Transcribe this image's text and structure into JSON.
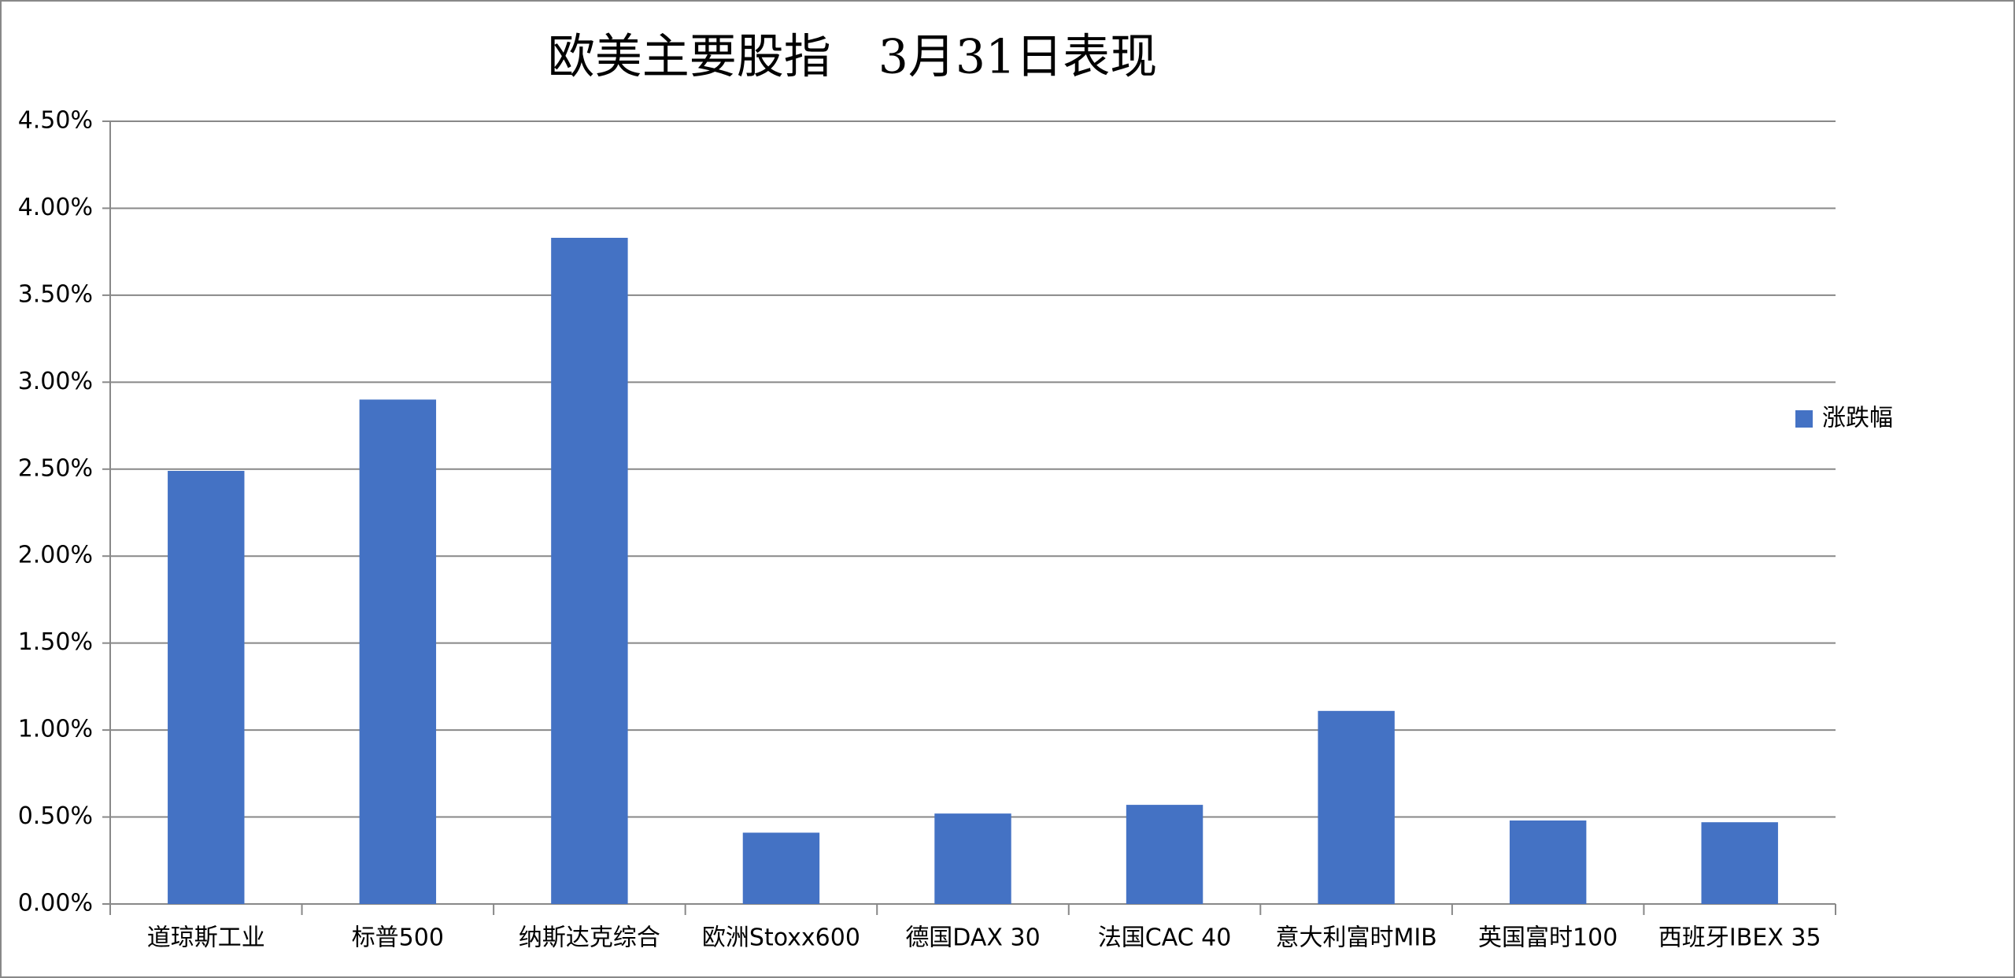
{
  "chart_data": {
    "type": "bar",
    "title": "欧美主要股指　3月31日表现",
    "categories": [
      "道琼斯工业",
      "标普500",
      "纳斯达克综合",
      "欧洲Stoxx600",
      "德国DAX 30",
      "法国CAC 40",
      "意大利富时MIB",
      "英国富时100",
      "西班牙IBEX 35"
    ],
    "series": [
      {
        "name": "涨跌幅",
        "color": "#4472c4",
        "values": [
          2.49,
          2.9,
          3.83,
          0.41,
          0.52,
          0.57,
          1.11,
          0.48,
          0.47
        ]
      }
    ],
    "ylim": [
      0,
      4.5
    ],
    "yticks": [
      {
        "value": 0,
        "label": "0.00%"
      },
      {
        "value": 0.5,
        "label": "0.50%"
      },
      {
        "value": 1,
        "label": "1.00%"
      },
      {
        "value": 1.5,
        "label": "1.50%"
      },
      {
        "value": 2,
        "label": "2.00%"
      },
      {
        "value": 2.5,
        "label": "2.50%"
      },
      {
        "value": 3,
        "label": "3.00%"
      },
      {
        "value": 3.5,
        "label": "3.50%"
      },
      {
        "value": 4,
        "label": "4.00%"
      },
      {
        "value": 4.5,
        "label": "4.50%"
      }
    ],
    "grid": true,
    "legend": "right"
  }
}
